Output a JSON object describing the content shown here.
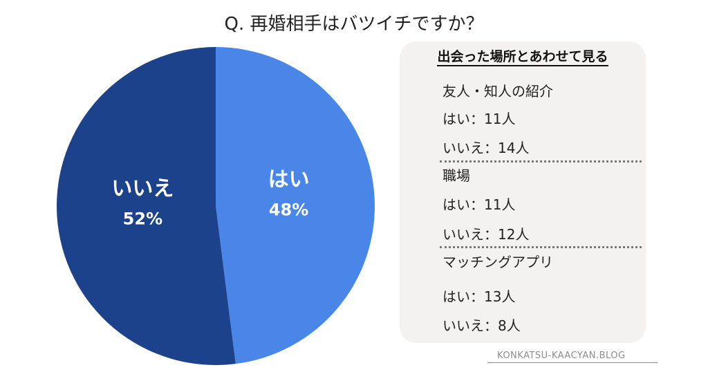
{
  "title": "Q. 再婚相手はバツイチですか？",
  "chart_data": {
    "type": "pie",
    "slices": [
      {
        "label": "はい",
        "value": 48,
        "percent_label": "48%",
        "color": "#4a86e8"
      },
      {
        "label": "いいえ",
        "value": 52,
        "percent_label": "52%",
        "color": "#1b428a"
      }
    ]
  },
  "panel": {
    "heading": "出会った場所とあわせて見る",
    "groups": [
      {
        "name": "友人・知人の紹介",
        "yes": "はい：11人",
        "no": "いいえ：14人"
      },
      {
        "name": "職場",
        "yes": "はい：11人",
        "no": "いいえ：12人"
      },
      {
        "name": "マッチングアプリ",
        "yes": "はい：13人",
        "no": "いいえ：8人"
      }
    ]
  },
  "watermark": "KONKATSU-KAACYAN.BLOG"
}
